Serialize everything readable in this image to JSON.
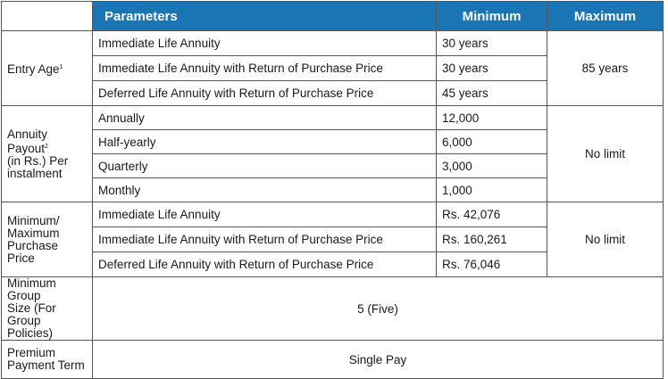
{
  "header": {
    "parameters": "Parameters",
    "minimum": "Minimum",
    "maximum": "Maximum"
  },
  "entry_age": {
    "label": "Entry Age",
    "note": "1",
    "rows": [
      {
        "name": "Immediate Life Annuity",
        "min": "30 years"
      },
      {
        "name": "Immediate Life Annuity with Return of Purchase Price",
        "min": "30 years"
      },
      {
        "name": "Deferred Life Annuity with Return of Purchase Price",
        "min": "45 years"
      }
    ],
    "max": "85 years"
  },
  "annuity_payout": {
    "label_line1": "Annuity",
    "label_line2": "Payout",
    "note": "2",
    "label_line3": "(in Rs.) Per",
    "label_line4": "instalment",
    "rows": [
      {
        "name": "Annually",
        "min": "12,000"
      },
      {
        "name": "Half-yearly",
        "min": "6,000"
      },
      {
        "name": "Quarterly",
        "min": "3,000"
      },
      {
        "name": "Monthly",
        "min": "1,000"
      }
    ],
    "max": "No limit"
  },
  "purchase_price": {
    "label_line1": "Minimum/",
    "label_line2": "Maximum",
    "label_line3": "Purchase Price",
    "rows": [
      {
        "name": "Immediate Life Annuity",
        "min": "Rs. 42,076"
      },
      {
        "name": "Immediate Life Annuity with Return of Purchase Price",
        "min": "Rs. 160,261"
      },
      {
        "name": "Deferred Life Annuity with Return of Purchase Price",
        "min": "Rs. 76,046"
      }
    ],
    "max": "No limit"
  },
  "group_size": {
    "label_line1": "Minimum Group",
    "label_line2": "Size (For Group",
    "label_line3": "Policies)",
    "value": "5 (Five)"
  },
  "premium_term": {
    "label_line1": "Premium",
    "label_line2": "Payment Term",
    "value": "Single Pay"
  }
}
